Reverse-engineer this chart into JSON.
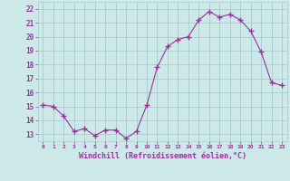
{
  "x": [
    0,
    1,
    2,
    3,
    4,
    5,
    6,
    7,
    8,
    9,
    10,
    11,
    12,
    13,
    14,
    15,
    16,
    17,
    18,
    19,
    20,
    21,
    22,
    23
  ],
  "y": [
    15.1,
    15.0,
    14.3,
    13.2,
    13.4,
    12.9,
    13.3,
    13.3,
    12.7,
    13.2,
    15.1,
    17.8,
    19.3,
    19.8,
    20.0,
    21.2,
    21.8,
    21.4,
    21.6,
    21.2,
    20.4,
    18.9,
    16.7,
    16.5
  ],
  "line_color": "#993399",
  "marker": "+",
  "marker_size": 4,
  "xlabel": "Windchill (Refroidissement éolien,°C)",
  "ylim": [
    12.5,
    22.5
  ],
  "xlim": [
    -0.5,
    23.5
  ],
  "yticks": [
    13,
    14,
    15,
    16,
    17,
    18,
    19,
    20,
    21,
    22
  ],
  "xticks": [
    0,
    1,
    2,
    3,
    4,
    5,
    6,
    7,
    8,
    9,
    10,
    11,
    12,
    13,
    14,
    15,
    16,
    17,
    18,
    19,
    20,
    21,
    22,
    23
  ],
  "bg_color": "#cce8e8",
  "grid_color": "#aacccc",
  "tick_color": "#993399",
  "label_color": "#993399"
}
